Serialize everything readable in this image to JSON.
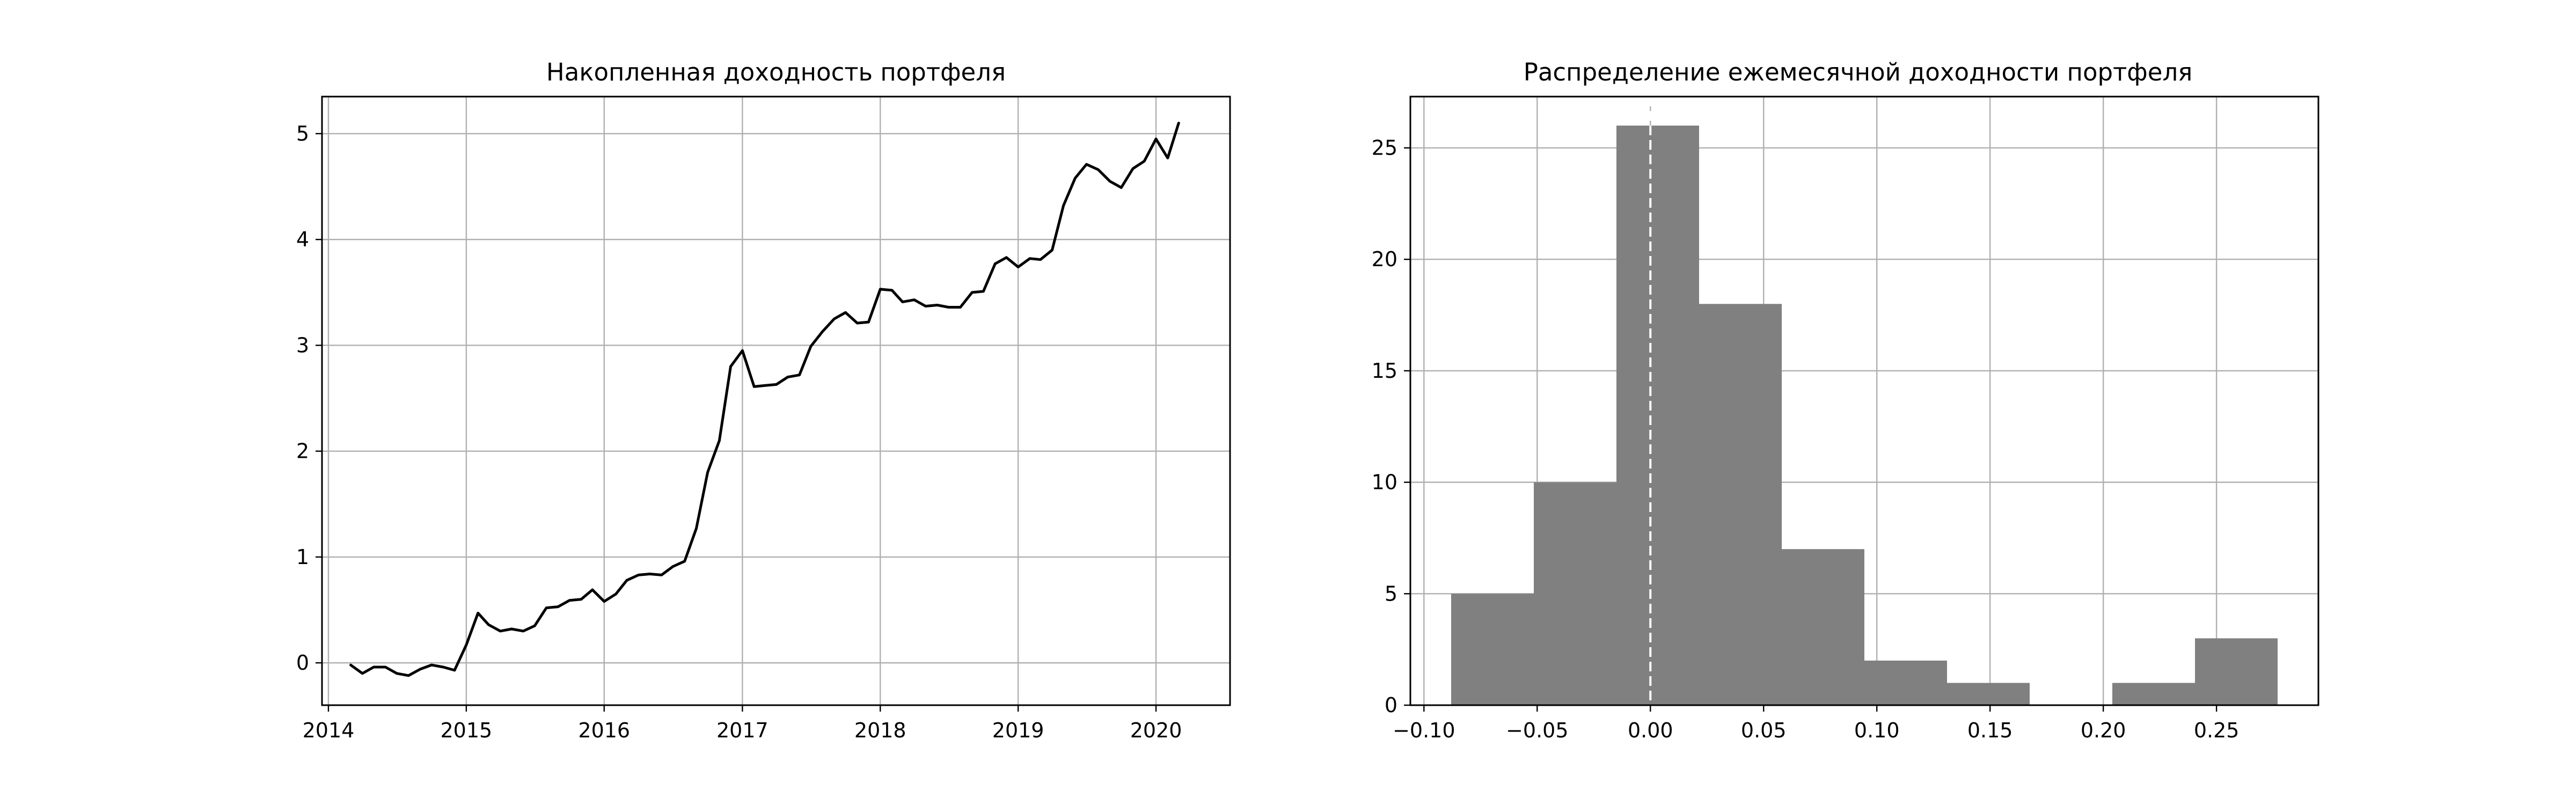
{
  "chart_data": [
    {
      "type": "line",
      "title": "Накопленная доходность портфеля",
      "xlabel": "",
      "ylabel": "",
      "x_ticks": [
        "2014",
        "2015",
        "2016",
        "2017",
        "2018",
        "2019",
        "2020"
      ],
      "y_ticks": [
        "0",
        "1",
        "2",
        "3",
        "4",
        "5"
      ],
      "xlim": [
        "2013-12-15",
        "2020-07-15"
      ],
      "ylim": [
        -0.4,
        5.35
      ],
      "grid": true,
      "line_color": "#000000",
      "series": [
        {
          "x": [
            "2014-03",
            "2014-04",
            "2014-05",
            "2014-06",
            "2014-07",
            "2014-08",
            "2014-09",
            "2014-10",
            "2014-11",
            "2014-12",
            "2015-01",
            "2015-02",
            "2015-03",
            "2015-04",
            "2015-05",
            "2015-06",
            "2015-07",
            "2015-08",
            "2015-09",
            "2015-10",
            "2015-11",
            "2015-12",
            "2016-01",
            "2016-02",
            "2016-03",
            "2016-04",
            "2016-05",
            "2016-06",
            "2016-07",
            "2016-08",
            "2016-09",
            "2016-10",
            "2016-11",
            "2016-12",
            "2017-01",
            "2017-02",
            "2017-03",
            "2017-04",
            "2017-05",
            "2017-06",
            "2017-07",
            "2017-08",
            "2017-09",
            "2017-10",
            "2017-11",
            "2017-12",
            "2018-01",
            "2018-02",
            "2018-03",
            "2018-04",
            "2018-05",
            "2018-06",
            "2018-07",
            "2018-08",
            "2018-09",
            "2018-10",
            "2018-11",
            "2018-12",
            "2019-01",
            "2019-02",
            "2019-03",
            "2019-04",
            "2019-05",
            "2019-06",
            "2019-07",
            "2019-08",
            "2019-09",
            "2019-10",
            "2019-11",
            "2019-12",
            "2020-01",
            "2020-02",
            "2020-03"
          ],
          "values": [
            -0.02,
            -0.1,
            -0.04,
            -0.04,
            -0.1,
            -0.12,
            -0.06,
            -0.02,
            -0.04,
            -0.07,
            0.17,
            0.47,
            0.36,
            0.3,
            0.32,
            0.3,
            0.35,
            0.52,
            0.53,
            0.59,
            0.6,
            0.69,
            0.58,
            0.65,
            0.78,
            0.83,
            0.84,
            0.83,
            0.91,
            0.96,
            1.27,
            1.8,
            2.1,
            2.8,
            2.95,
            2.61,
            2.62,
            2.63,
            2.7,
            2.72,
            2.99,
            3.13,
            3.25,
            3.31,
            3.21,
            3.22,
            3.53,
            3.52,
            3.41,
            3.43,
            3.37,
            3.38,
            3.36,
            3.36,
            3.5,
            3.51,
            3.77,
            3.83,
            3.74,
            3.82,
            3.81,
            3.9,
            4.32,
            4.58,
            4.71,
            4.66,
            4.55,
            4.49,
            4.67,
            4.74,
            4.95,
            4.77,
            5.1
          ]
        }
      ]
    },
    {
      "type": "bar",
      "subtype": "histogram",
      "title": "Распределение ежемесячной доходности портфеля",
      "xlabel": "",
      "ylabel": "",
      "bin_edges": [
        -0.088,
        -0.0515,
        -0.015,
        0.0215,
        0.058,
        0.0945,
        0.131,
        0.1675,
        0.204,
        0.2405,
        0.277
      ],
      "counts": [
        5,
        10,
        26,
        18,
        7,
        2,
        1,
        0,
        1,
        3
      ],
      "x_ticks": [
        "−0.10",
        "−0.05",
        "0.00",
        "0.05",
        "0.10",
        "0.15",
        "0.20",
        "0.25"
      ],
      "x_tick_values": [
        -0.1,
        -0.05,
        0,
        0.05,
        0.1,
        0.15,
        0.2,
        0.25
      ],
      "y_ticks": [
        "0",
        "5",
        "10",
        "15",
        "20",
        "25"
      ],
      "y_tick_values": [
        0,
        5,
        10,
        15,
        20,
        25
      ],
      "xlim": [
        -0.106,
        0.295
      ],
      "ylim": [
        0,
        27.3
      ],
      "grid": true,
      "bar_color": "#808080",
      "reference_line": {
        "x": 0,
        "style": "dashed",
        "color": "#ffffff"
      }
    }
  ]
}
